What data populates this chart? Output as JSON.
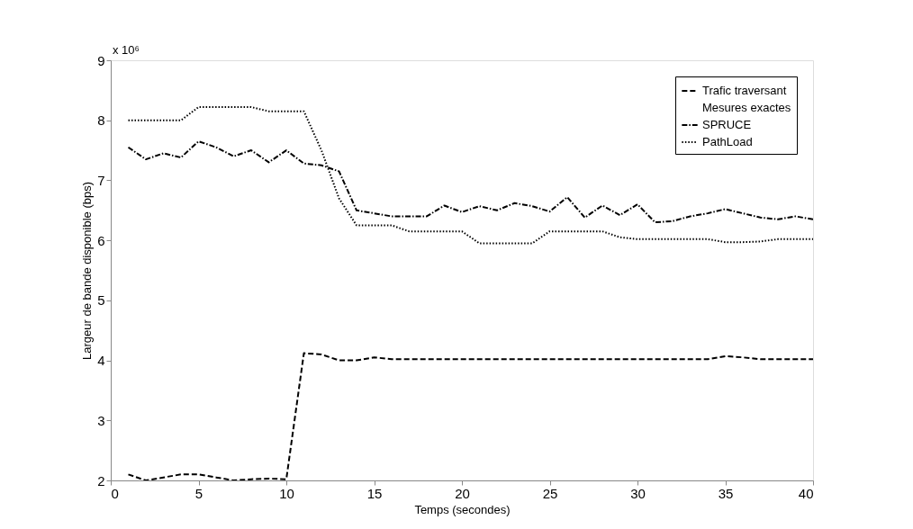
{
  "chart_data": {
    "type": "line",
    "xlabel": "Temps (secondes)",
    "ylabel": "Largeur de bande disponible (bps)",
    "annotations": [
      "x 10⁶"
    ],
    "x": [
      1,
      2,
      3,
      4,
      5,
      6,
      7,
      8,
      9,
      10,
      11,
      12,
      13,
      14,
      15,
      16,
      17,
      18,
      19,
      20,
      21,
      22,
      23,
      24,
      25,
      26,
      27,
      28,
      29,
      30,
      31,
      32,
      33,
      34,
      35,
      36,
      37,
      38,
      39,
      40
    ],
    "series": [
      {
        "name": "Trafic traversant",
        "color": "#000000",
        "line_style": "dashed",
        "values": [
          2.1,
          2.0,
          2.05,
          2.1,
          2.1,
          2.05,
          2.0,
          2.02,
          2.03,
          2.02,
          4.12,
          4.1,
          4.0,
          4.0,
          4.05,
          4.02,
          4.02,
          4.02,
          4.02,
          4.02,
          4.02,
          4.02,
          4.02,
          4.02,
          4.02,
          4.02,
          4.02,
          4.02,
          4.02,
          4.02,
          4.02,
          4.02,
          4.02,
          4.02,
          4.07,
          4.05,
          4.02,
          4.02,
          4.02,
          4.02
        ]
      },
      {
        "name": "Mesures exactes",
        "line_style": "solid",
        "values": [
          null,
          null,
          null,
          null,
          null,
          null,
          null,
          null,
          null,
          null,
          null,
          null,
          null,
          null,
          null,
          null,
          null,
          null,
          null,
          null,
          null,
          null,
          null,
          null,
          null,
          null,
          null,
          null,
          null,
          null,
          null,
          null,
          null,
          null,
          null,
          null,
          null,
          null,
          null,
          null
        ]
      },
      {
        "name": "SPRUCE",
        "color": "#000000",
        "line_style": "dashdot",
        "values": [
          7.55,
          7.35,
          7.45,
          7.38,
          7.65,
          7.55,
          7.4,
          7.5,
          7.3,
          7.5,
          7.28,
          7.25,
          7.15,
          6.5,
          6.45,
          6.4,
          6.4,
          6.4,
          6.58,
          6.47,
          6.57,
          6.5,
          6.62,
          6.57,
          6.48,
          6.72,
          6.38,
          6.58,
          6.42,
          6.6,
          6.3,
          6.32,
          6.4,
          6.45,
          6.52,
          6.45,
          6.38,
          6.35,
          6.4,
          6.35
        ]
      },
      {
        "name": "PathLoad",
        "color": "#000000",
        "line_style": "dotted",
        "values": [
          8.0,
          8.0,
          8.0,
          8.0,
          8.22,
          8.22,
          8.22,
          8.22,
          8.15,
          8.15,
          8.15,
          7.5,
          6.7,
          6.25,
          6.25,
          6.25,
          6.15,
          6.15,
          6.15,
          6.15,
          5.95,
          5.95,
          5.95,
          5.95,
          6.15,
          6.15,
          6.15,
          6.15,
          6.05,
          6.02,
          6.02,
          6.02,
          6.02,
          6.02,
          5.97,
          5.97,
          5.98,
          6.02,
          6.02,
          6.02
        ]
      }
    ],
    "xlim": [
      0,
      40
    ],
    "xticks": [
      0,
      5,
      10,
      15,
      20,
      25,
      30,
      35,
      40
    ],
    "ylim": [
      2,
      9
    ],
    "yticks": [
      2,
      3,
      4,
      5,
      6,
      7,
      8,
      9
    ],
    "grid": false,
    "legend": "top right",
    "marker": "none"
  }
}
